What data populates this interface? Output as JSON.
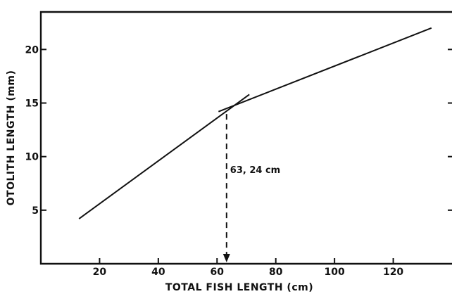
{
  "chart_data": {
    "type": "line",
    "xlabel": "TOTAL FISH LENGTH (cm)",
    "ylabel": "OTOLITH LENGTH (mm)",
    "xlim": [
      0,
      140
    ],
    "ylim": [
      0,
      23.5
    ],
    "xticks": [
      20,
      40,
      60,
      80,
      100,
      120
    ],
    "yticks": [
      5,
      10,
      15,
      20
    ],
    "xtick_labels": [
      "20",
      "40",
      "60",
      "80",
      "100",
      "120"
    ],
    "ytick_labels": [
      "5",
      "10",
      "15",
      "20"
    ],
    "grid": false,
    "series": [
      {
        "x": [
          13,
          71
        ],
        "y": [
          4.2,
          15.8
        ]
      },
      {
        "x": [
          60.5,
          133
        ],
        "y": [
          14.2,
          22.0
        ]
      }
    ],
    "breakpoint": {
      "x": 63.24,
      "y": 14.5,
      "label": "63, 24 cm"
    }
  }
}
